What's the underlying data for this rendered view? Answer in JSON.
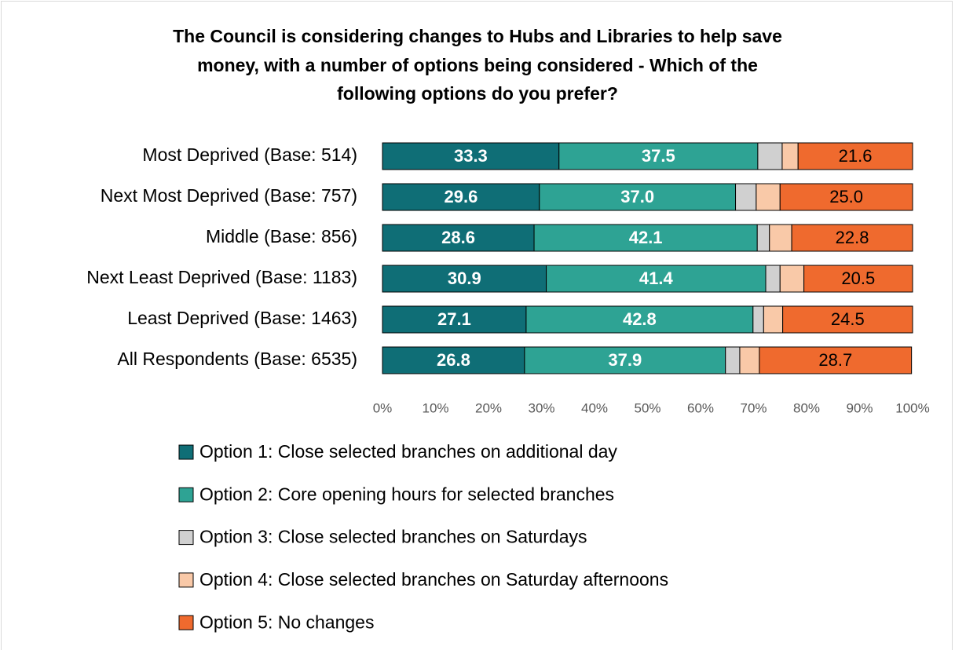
{
  "chart_data": {
    "type": "stacked_bar_horizontal",
    "title": [
      "The Council is considering changes to Hubs and Libraries to help save",
      "money, with a number of options being considered  -  Which of the",
      "following options do you prefer?"
    ],
    "categories": [
      "Most Deprived (Base: 514)",
      "Next Most Deprived (Base: 757)",
      "Middle (Base: 856)",
      "Next Least Deprived (Base: 1183)",
      "Least Deprived (Base: 1463)",
      "All Respondents (Base: 6535)"
    ],
    "series": [
      {
        "name": "Option 1: Close selected branches on additional day",
        "color": "#0f6e76",
        "values": [
          33.3,
          29.6,
          28.6,
          30.9,
          27.1,
          26.8
        ],
        "value_labels": [
          "33.3",
          "29.6",
          "28.6",
          "30.9",
          "27.1",
          "26.8"
        ]
      },
      {
        "name": "Option 2: Core opening hours for selected branches",
        "color": "#2ea394",
        "values": [
          37.5,
          37.0,
          42.1,
          41.4,
          42.8,
          37.9
        ],
        "value_labels": [
          "37.5",
          "37.0",
          "42.1",
          "41.4",
          "42.8",
          "37.9"
        ]
      },
      {
        "name": "Option 3: Close selected branches on Saturdays",
        "color": "#d0d0d0",
        "values": [
          4.6,
          3.9,
          2.3,
          2.7,
          2.0,
          2.7
        ]
      },
      {
        "name": "Option 4: Close selected branches on Saturday afternoons",
        "color": "#f9c9a8",
        "values": [
          3.0,
          4.5,
          4.2,
          4.5,
          3.6,
          3.7
        ]
      },
      {
        "name": "Option 5: No changes",
        "color": "#ef6a2e",
        "values": [
          21.6,
          25.0,
          22.8,
          20.5,
          24.5,
          28.7
        ],
        "value_labels": [
          "21.6",
          "25.0",
          "22.8",
          "20.5",
          "24.5",
          "28.7"
        ]
      }
    ],
    "xlim": [
      0,
      100
    ],
    "xticks": [
      {
        "value": 0,
        "label": "0%"
      },
      {
        "value": 10,
        "label": "10%"
      },
      {
        "value": 20,
        "label": "20%"
      },
      {
        "value": 30,
        "label": "30%"
      },
      {
        "value": 40,
        "label": "40%"
      },
      {
        "value": 50,
        "label": "50%"
      },
      {
        "value": 60,
        "label": "60%"
      },
      {
        "value": 70,
        "label": "70%"
      },
      {
        "value": 80,
        "label": "80%"
      },
      {
        "value": 90,
        "label": "90%"
      },
      {
        "value": 100,
        "label": "100%"
      }
    ],
    "legend": "bottom"
  }
}
